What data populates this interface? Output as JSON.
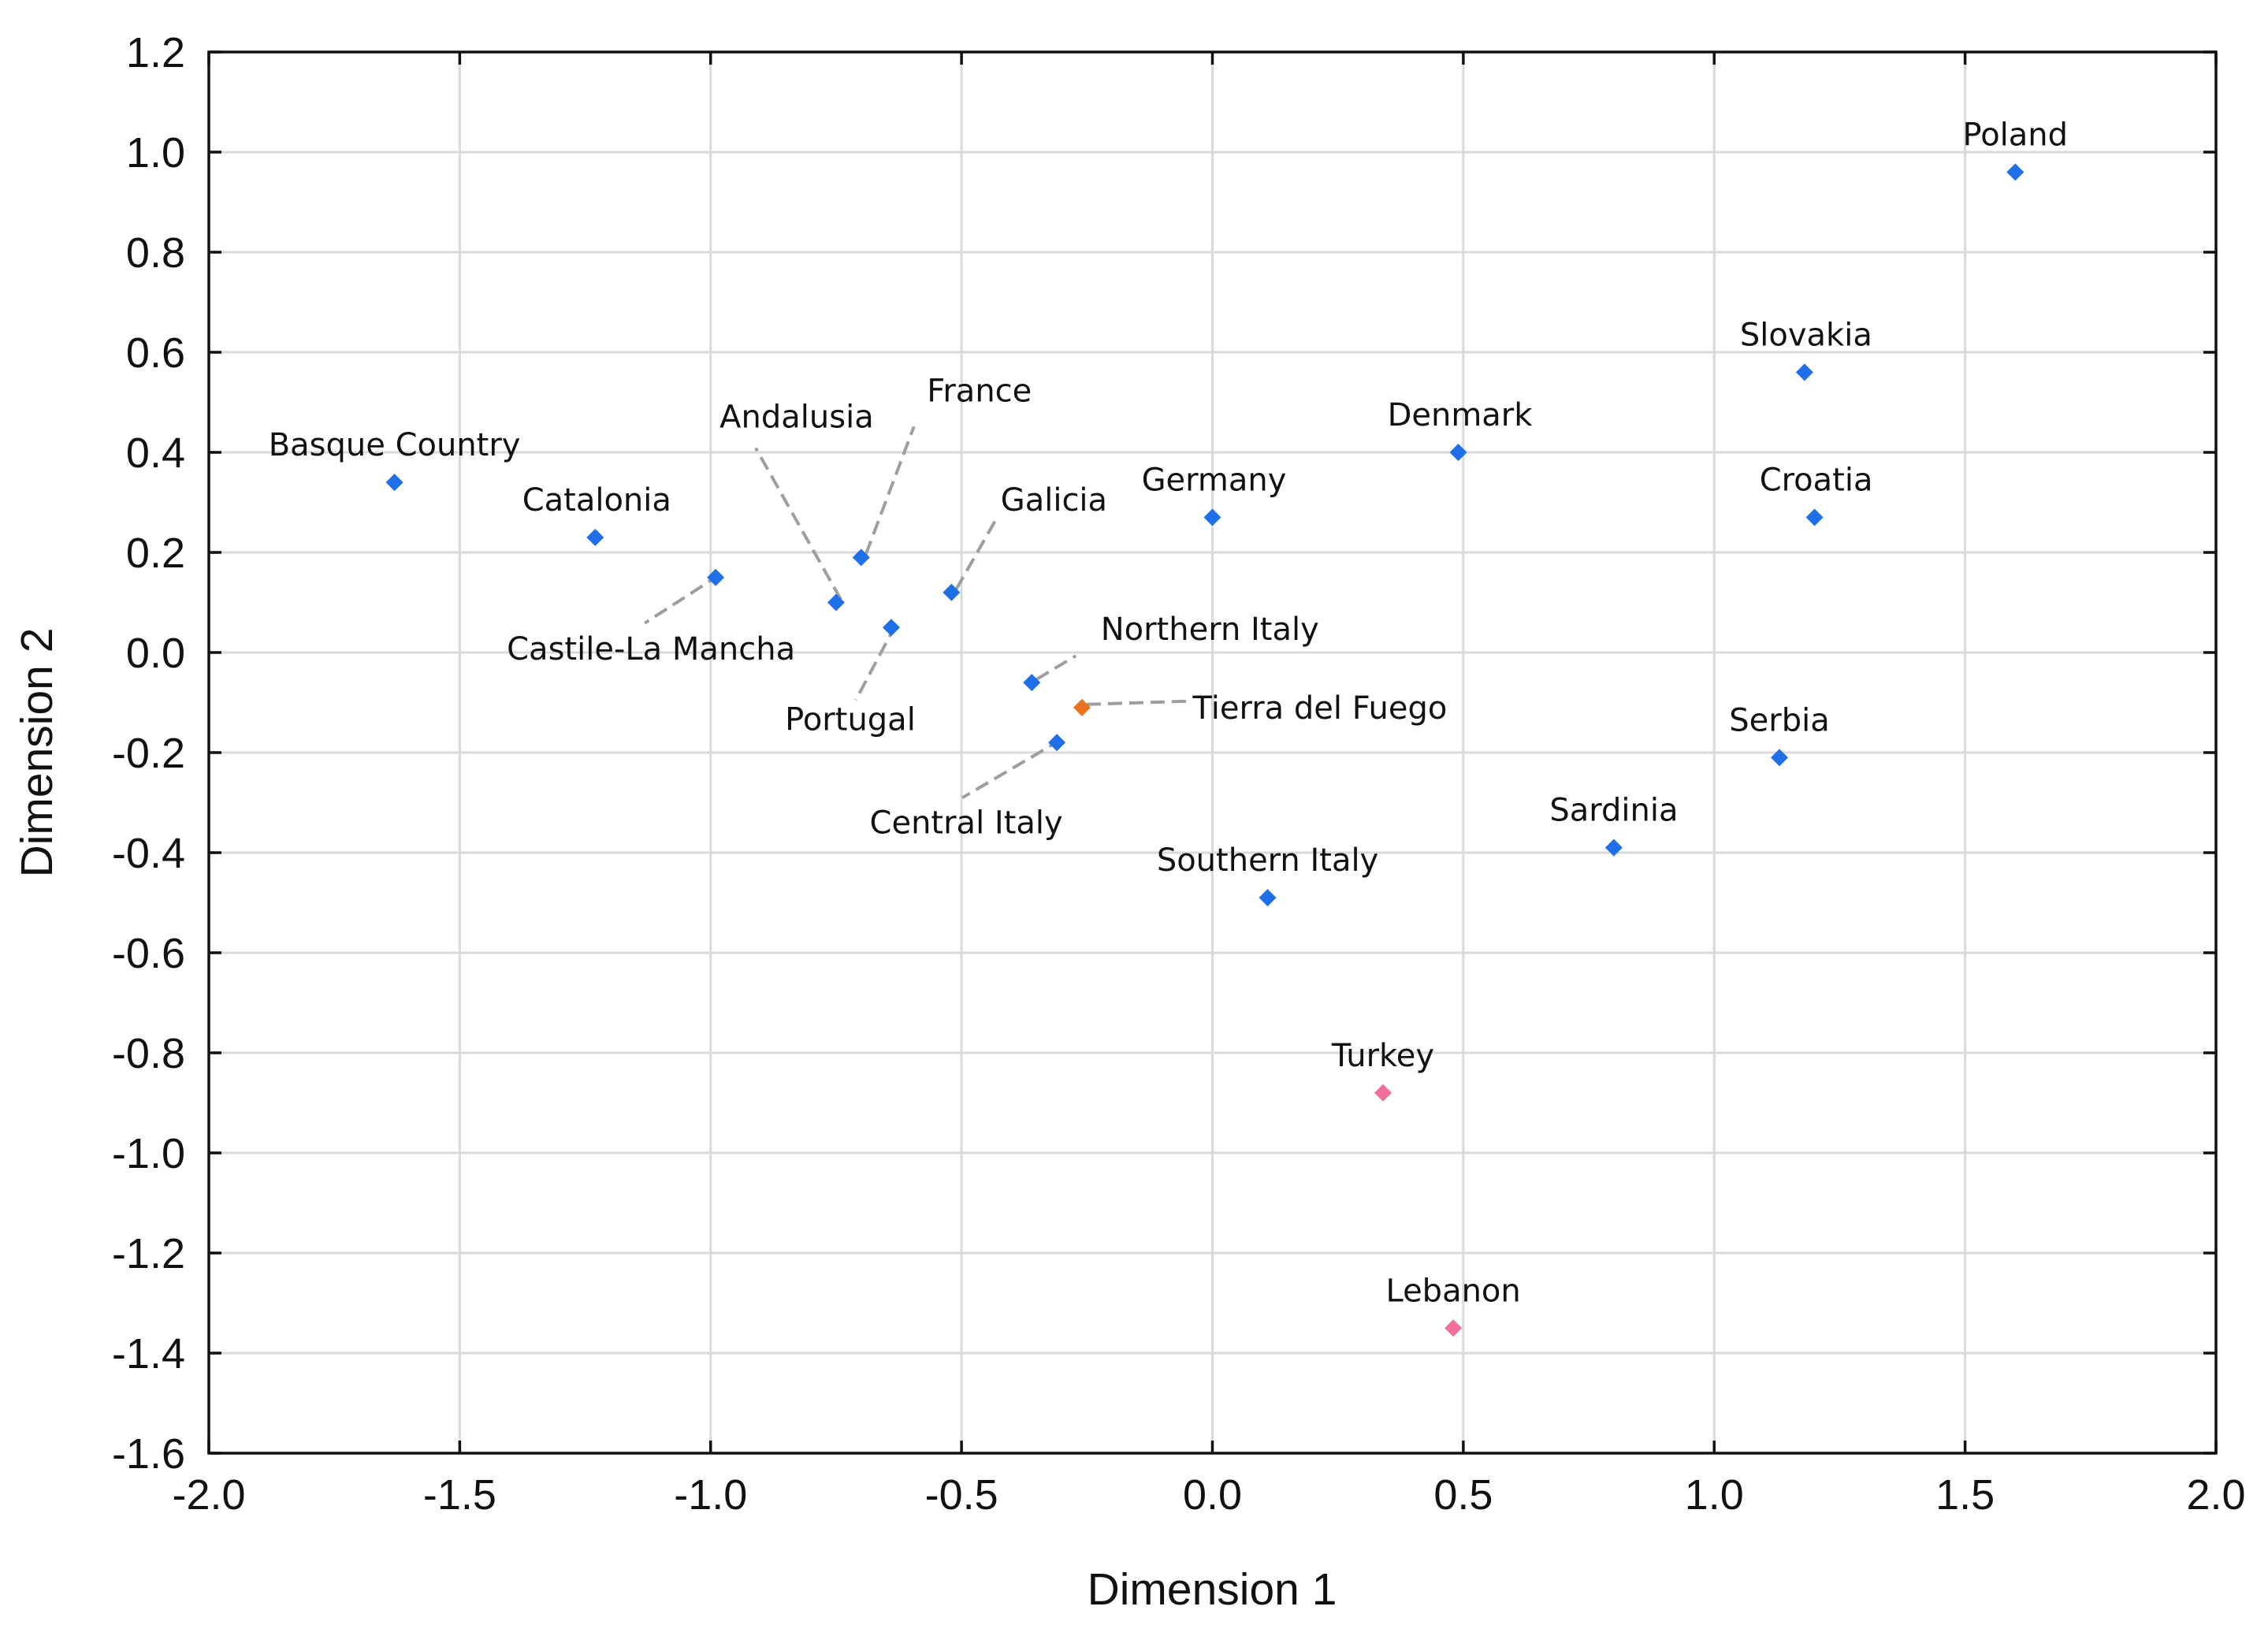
{
  "chart_data": {
    "type": "scatter",
    "title": "",
    "xlabel": "Dimension 1",
    "ylabel": "Dimension 2",
    "xlim": [
      -2.0,
      2.0
    ],
    "ylim": [
      -1.6,
      1.2
    ],
    "xticks": [
      -2.0,
      -1.5,
      -1.0,
      -0.5,
      0.0,
      0.5,
      1.0,
      1.5,
      2.0
    ],
    "yticks": [
      1.2,
      1.0,
      0.8,
      0.6,
      0.4,
      0.2,
      0.0,
      -0.2,
      -0.4,
      -0.6,
      -0.8,
      -1.0,
      -1.2,
      -1.4,
      -1.6
    ],
    "xtick_labels": [
      "-2.0",
      "-1.5",
      "-1.0",
      "-0.5",
      "0.0",
      "0.5",
      "1.0",
      "1.5",
      "2.0"
    ],
    "ytick_labels": [
      "1.2",
      "1.0",
      "0.8",
      "0.6",
      "0.4",
      "0.2",
      "0.0",
      "-0.2",
      "-0.4",
      "-0.6",
      "-0.8",
      "-1.0",
      "-1.2",
      "-1.4",
      "-1.6"
    ],
    "grid": true,
    "colors": {
      "default": "#1f6fe8",
      "highlight": "#e8731f",
      "accent": "#f0709a"
    },
    "points": [
      {
        "name": "Poland",
        "x": 1.6,
        "y": 0.96,
        "color": "#1f6fe8"
      },
      {
        "name": "Slovakia",
        "x": 1.18,
        "y": 0.56,
        "color": "#1f6fe8"
      },
      {
        "name": "Denmark",
        "x": 0.49,
        "y": 0.4,
        "color": "#1f6fe8"
      },
      {
        "name": "Croatia",
        "x": 1.2,
        "y": 0.27,
        "color": "#1f6fe8"
      },
      {
        "name": "Germany",
        "x": 0.0,
        "y": 0.27,
        "color": "#1f6fe8"
      },
      {
        "name": "Basque Country",
        "x": -1.63,
        "y": 0.34,
        "color": "#1f6fe8"
      },
      {
        "name": "Catalonia",
        "x": -1.23,
        "y": 0.23,
        "color": "#1f6fe8"
      },
      {
        "name": "Castile-La Mancha",
        "x": -0.99,
        "y": 0.15,
        "color": "#1f6fe8"
      },
      {
        "name": "Andalusia",
        "x": -0.75,
        "y": 0.1,
        "color": "#1f6fe8"
      },
      {
        "name": "France",
        "x": -0.7,
        "y": 0.19,
        "color": "#1f6fe8"
      },
      {
        "name": "Portugal",
        "x": -0.64,
        "y": 0.05,
        "color": "#1f6fe8"
      },
      {
        "name": "Galicia",
        "x": -0.52,
        "y": 0.12,
        "color": "#1f6fe8"
      },
      {
        "name": "Northern Italy",
        "x": -0.36,
        "y": -0.06,
        "color": "#1f6fe8"
      },
      {
        "name": "Tierra del Fuego",
        "x": -0.26,
        "y": -0.11,
        "color": "#e8731f"
      },
      {
        "name": "Central Italy",
        "x": -0.31,
        "y": -0.18,
        "color": "#1f6fe8"
      },
      {
        "name": "Serbia",
        "x": 1.13,
        "y": -0.21,
        "color": "#1f6fe8"
      },
      {
        "name": "Sardinia",
        "x": 0.8,
        "y": -0.39,
        "color": "#1f6fe8"
      },
      {
        "name": "Southern Italy",
        "x": 0.11,
        "y": -0.49,
        "color": "#1f6fe8"
      },
      {
        "name": "Turkey",
        "x": 0.34,
        "y": -0.88,
        "color": "#f0709a"
      },
      {
        "name": "Lebanon",
        "x": 0.48,
        "y": -1.35,
        "color": "#f0709a"
      }
    ]
  }
}
